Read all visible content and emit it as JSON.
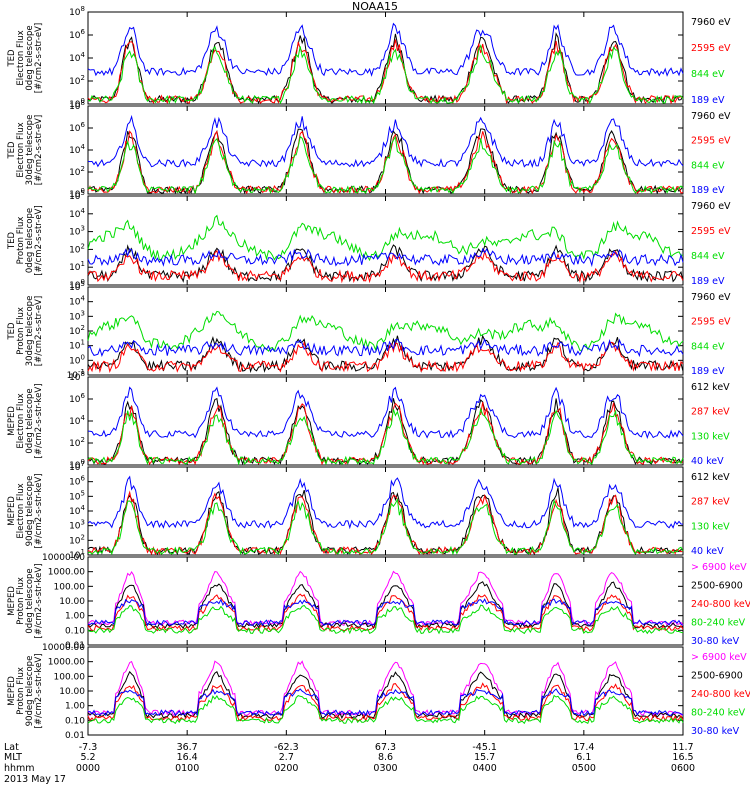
{
  "chart_data": {
    "type": "line",
    "title": "NOAA15",
    "date": "2013 May 17",
    "x_rows": [
      {
        "label": "Lat",
        "values": [
          "-7.3",
          "36.7",
          "-62.3",
          "67.3",
          "-45.1",
          "17.4",
          "11.7"
        ]
      },
      {
        "label": "MLT",
        "values": [
          "5.2",
          "16.4",
          "2.7",
          "8.6",
          "15.7",
          "6.1",
          "16.5"
        ]
      },
      {
        "label": "hhmm",
        "values": [
          "0000",
          "0100",
          "0200",
          "0300",
          "0400",
          "0500",
          "0600"
        ]
      }
    ],
    "x_hours": [
      0,
      1,
      2,
      3,
      4,
      5,
      6
    ],
    "xlim": [
      0,
      6
    ],
    "panels": [
      {
        "id": "ted-e-0",
        "ylabel": [
          "TED",
          "Electron Flux",
          "0deg telescope",
          "[#/cm2-s-str-eV]"
        ],
        "ylog": true,
        "ylim": [
          1,
          100000000
        ],
        "yticks": [
          "10^0",
          "10^2",
          "10^4",
          "10^6",
          "10^8"
        ],
        "series": [
          {
            "name": "7960 eV",
            "color": "#000000"
          },
          {
            "name": "2595 eV",
            "color": "#ff0000"
          },
          {
            "name": "844 eV",
            "color": "#00dd00"
          },
          {
            "name": "189 eV",
            "color": "#0000ff"
          }
        ]
      },
      {
        "id": "ted-e-30",
        "ylabel": [
          "TED",
          "Electron Flux",
          "30deg telescope",
          "[#/cm2-s-str-eV]"
        ],
        "ylog": true,
        "ylim": [
          1,
          100000000
        ],
        "yticks": [
          "10^0",
          "10^2",
          "10^4",
          "10^6",
          "10^8"
        ],
        "series": [
          {
            "name": "7960 eV",
            "color": "#000000"
          },
          {
            "name": "2595 eV",
            "color": "#ff0000"
          },
          {
            "name": "844 eV",
            "color": "#00dd00"
          },
          {
            "name": "189 eV",
            "color": "#0000ff"
          }
        ]
      },
      {
        "id": "ted-p-0",
        "ylabel": [
          "TED",
          "Proton Flux",
          "0deg telescope",
          "[#/cm2-s-str-eV]"
        ],
        "ylog": true,
        "ylim": [
          1,
          100000
        ],
        "yticks": [
          "10^0",
          "10^1",
          "10^2",
          "10^3",
          "10^4",
          "10^5"
        ],
        "series": [
          {
            "name": "7960 eV",
            "color": "#000000"
          },
          {
            "name": "2595 eV",
            "color": "#ff0000"
          },
          {
            "name": "844 eV",
            "color": "#00dd00"
          },
          {
            "name": "189 eV",
            "color": "#0000ff"
          }
        ]
      },
      {
        "id": "ted-p-30",
        "ylabel": [
          "TED",
          "Proton Flux",
          "30deg telescope",
          "[#/cm2-s-str-eV]"
        ],
        "ylog": true,
        "ylim": [
          0.1,
          100000
        ],
        "yticks": [
          "10^-1",
          "10^0",
          "10^1",
          "10^2",
          "10^3",
          "10^4",
          "10^5"
        ],
        "series": [
          {
            "name": "7960 eV",
            "color": "#000000"
          },
          {
            "name": "2595 eV",
            "color": "#ff0000"
          },
          {
            "name": "844 eV",
            "color": "#00dd00"
          },
          {
            "name": "189 eV",
            "color": "#0000ff"
          }
        ]
      },
      {
        "id": "meped-e-0",
        "ylabel": [
          "MEPED",
          "Electron Flux",
          "0deg telescope",
          "[#/cm2-s-str-keV]"
        ],
        "ylog": true,
        "ylim": [
          1,
          100000000
        ],
        "yticks": [
          "10^0",
          "10^2",
          "10^4",
          "10^6",
          "10^8"
        ],
        "series": [
          {
            "name": "612 keV",
            "color": "#000000"
          },
          {
            "name": "287 keV",
            "color": "#ff0000"
          },
          {
            "name": "130 keV",
            "color": "#00dd00"
          },
          {
            "name": "40 keV",
            "color": "#0000ff"
          }
        ]
      },
      {
        "id": "meped-e-90",
        "ylabel": [
          "MEPED",
          "Electron Flux",
          "90deg telescope",
          "[#/cm2-s-str-keV]"
        ],
        "ylog": true,
        "ylim": [
          1,
          100000000
        ],
        "yticks": [
          "10^1",
          "10^2",
          "10^3",
          "10^4",
          "10^5",
          "10^6",
          "10^7"
        ],
        "series": [
          {
            "name": "612 keV",
            "color": "#000000"
          },
          {
            "name": "287 keV",
            "color": "#ff0000"
          },
          {
            "name": "130 keV",
            "color": "#00dd00"
          },
          {
            "name": "40 keV",
            "color": "#0000ff"
          }
        ]
      },
      {
        "id": "meped-p-0",
        "ylabel": [
          "MEPED",
          "Proton Flux",
          "0deg telescope",
          "[#/cm2-s-str-keV]"
        ],
        "ylog": true,
        "ylim": [
          0.01,
          10000
        ],
        "yticks": [
          "0.01",
          "0.10",
          "1.00",
          "10.00",
          "100.00",
          "1000.00",
          "10000.00"
        ],
        "series": [
          {
            "name": "> 6900 keV",
            "color": "#ff00ff"
          },
          {
            "name": "2500-6900",
            "color": "#000000"
          },
          {
            "name": "240-800 keV",
            "color": "#ff0000"
          },
          {
            "name": "80-240 keV",
            "color": "#00dd00"
          },
          {
            "name": "30-80 keV",
            "color": "#0000ff"
          }
        ]
      },
      {
        "id": "meped-p-90",
        "ylabel": [
          "MEPED",
          "Proton Flux",
          "90deg telescope",
          "[#/cm2-s-str-keV]"
        ],
        "ylog": true,
        "ylim": [
          0.01,
          10000
        ],
        "yticks": [
          "0.01",
          "0.10",
          "1.00",
          "10.00",
          "100.00",
          "1000.00",
          "10000.00"
        ],
        "series": [
          {
            "name": "> 6900 keV",
            "color": "#ff00ff"
          },
          {
            "name": "2500-6900",
            "color": "#000000"
          },
          {
            "name": "240-800 keV",
            "color": "#ff0000"
          },
          {
            "name": "80-240 keV",
            "color": "#00dd00"
          },
          {
            "name": "30-80 keV",
            "color": "#0000ff"
          }
        ]
      }
    ],
    "passes_hours": [
      {
        "start": 0.3,
        "end": 0.55
      },
      {
        "start": 1.15,
        "end": 1.45
      },
      {
        "start": 2.0,
        "end": 2.3
      },
      {
        "start": 2.95,
        "end": 3.25
      },
      {
        "start": 3.8,
        "end": 4.15
      },
      {
        "start": 4.6,
        "end": 4.85
      },
      {
        "start": 5.15,
        "end": 5.45
      }
    ]
  }
}
